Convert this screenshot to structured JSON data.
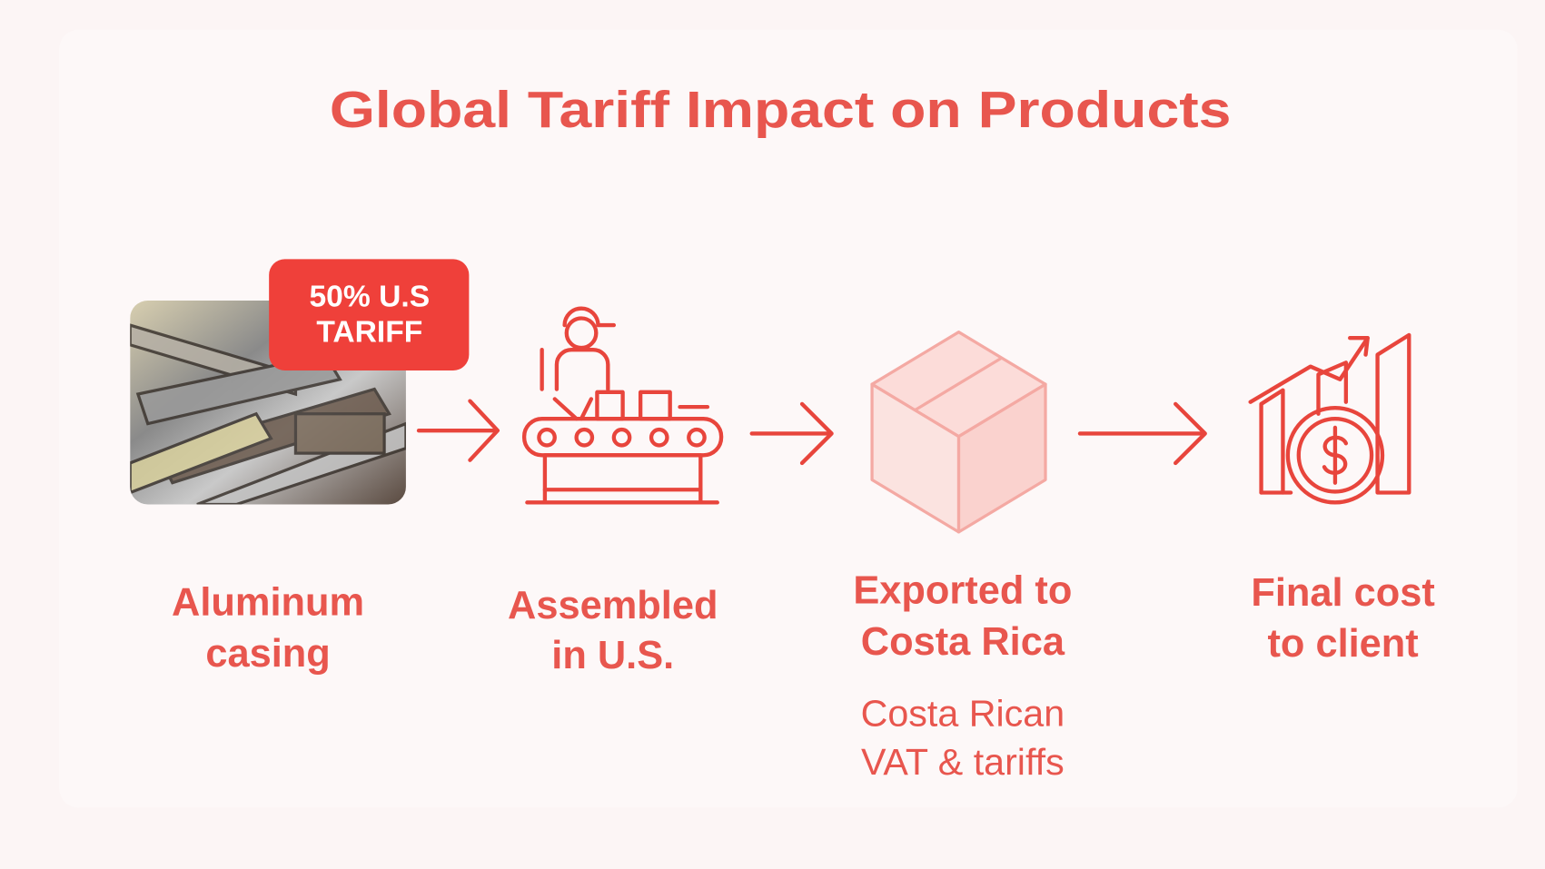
{
  "title": "Global Tariff Impact on Products",
  "badge": {
    "lines": [
      "50% U.S",
      "TARIFF"
    ]
  },
  "steps": [
    {
      "label": [
        "Aluminum",
        "casing"
      ]
    },
    {
      "label": [
        "Assembled",
        "in U.S."
      ]
    },
    {
      "label": [
        "Exported to",
        "Costa Rica"
      ],
      "note": [
        "Costa Rican",
        "VAT & tariffs"
      ]
    },
    {
      "label": [
        "Final cost",
        "to client"
      ]
    }
  ]
}
